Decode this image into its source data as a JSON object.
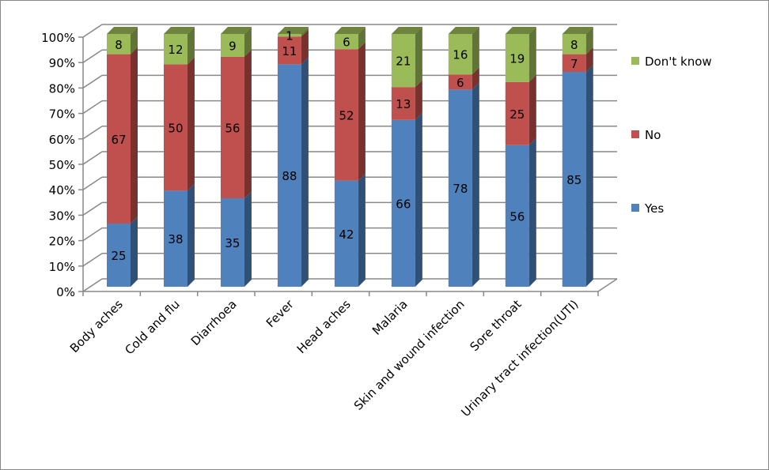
{
  "chart_data": {
    "type": "bar",
    "stacked": "percent",
    "title": "",
    "xlabel": "",
    "ylabel": "",
    "ylim": [
      0,
      100
    ],
    "y_ticks": [
      "0%",
      "10%",
      "20%",
      "30%",
      "40%",
      "50%",
      "60%",
      "70%",
      "80%",
      "90%",
      "100%"
    ],
    "categories": [
      "Body aches",
      "Cold and flu",
      "Diarrhoea",
      "Fever",
      "Head aches",
      "Malaria",
      "Skin and wound infection",
      "Sore throat",
      "Urinary tract infection(UTI)"
    ],
    "series": [
      {
        "name": "Yes",
        "color": "#4F81BD",
        "values": [
          25,
          38,
          35,
          88,
          42,
          66,
          78,
          56,
          85
        ]
      },
      {
        "name": "No",
        "color": "#C0504D",
        "values": [
          67,
          50,
          56,
          11,
          52,
          13,
          6,
          25,
          7
        ]
      },
      {
        "name": "Don't know",
        "color": "#9BBB59",
        "values": [
          8,
          12,
          9,
          1,
          6,
          21,
          16,
          19,
          8
        ]
      }
    ],
    "legend_position": "right",
    "grid": true
  }
}
